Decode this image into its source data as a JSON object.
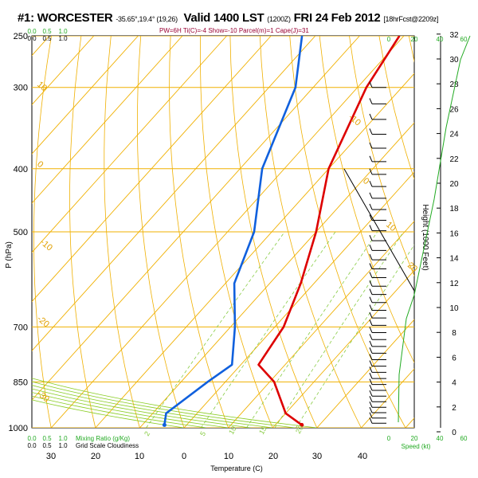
{
  "header": {
    "station": "#1: WORCESTER",
    "coords": "-35.65°,19.4° (19,26)",
    "valid": "Valid 1400 LST",
    "utc": "(1200Z)",
    "date": "FRI 24 Feb 2012",
    "forecast": "[18hrFcst@2209z]",
    "indices": "PW=6H Ti(C)=-4 Show=-10 Parcel(m)=1 Cape(J)=31"
  },
  "legend": {
    "mixing_ratio": "Mixing Ratio (g/Kg)",
    "cloudiness": "Grid Scale Cloudiness"
  },
  "chart_data": {
    "type": "line",
    "title": "",
    "xlabel": "Temperature (C)",
    "ylabel": "P (hPa)",
    "right_ylabel": "Height (1000 Feet)",
    "speed_label": "Speed (kt)",
    "x_ticks": [
      "30",
      "20",
      "10",
      "0",
      "10",
      "20",
      "30",
      "40"
    ],
    "pressure_ticks": [
      250,
      300,
      400,
      500,
      700,
      850,
      1000
    ],
    "height_ticks": [
      0,
      2,
      4,
      6,
      8,
      10,
      12,
      14,
      16,
      18,
      20,
      22,
      24,
      26,
      28,
      30,
      32
    ],
    "top_scale_green": [
      "0.0",
      "0.5",
      "1.0"
    ],
    "top_scale_black": [
      "0.0",
      "0.5",
      "1.0"
    ],
    "bottom_scale_green": [
      "0.0",
      "0.5",
      "1.0"
    ],
    "bottom_scale_black": [
      "0.0",
      "0.5",
      "1.0"
    ],
    "speed_ticks_top": [
      "0",
      "20",
      "40",
      "60"
    ],
    "speed_ticks_bottom": [
      "0",
      "20",
      "40",
      "60"
    ],
    "isotherm_labels": [
      "-10",
      "0",
      "10",
      "20",
      "30"
    ],
    "isotherm_labels_left": [
      "10",
      "0",
      "-10",
      "-20",
      "-30"
    ],
    "mixing_ratio_labels": [
      "2",
      "5",
      "10",
      "15",
      "20"
    ],
    "series": [
      {
        "name": "",
        "color": "#dd0000",
        "points": [
          [
            -31,
            250
          ],
          [
            -28,
            300
          ],
          [
            -20,
            400
          ],
          [
            -10,
            500
          ],
          [
            -3,
            600
          ],
          [
            2,
            700
          ],
          [
            4,
            800
          ],
          [
            11,
            850
          ],
          [
            20,
            950
          ],
          [
            26,
            990
          ]
        ]
      },
      {
        "name": "",
        "color": "#1060dd",
        "points": [
          [
            -53,
            250
          ],
          [
            -44,
            300
          ],
          [
            -35,
            400
          ],
          [
            -24,
            500
          ],
          [
            -18,
            600
          ],
          [
            -9,
            700
          ],
          [
            -2,
            800
          ],
          [
            -4,
            850
          ],
          [
            -7,
            950
          ],
          [
            -5,
            990
          ]
        ]
      }
    ]
  }
}
